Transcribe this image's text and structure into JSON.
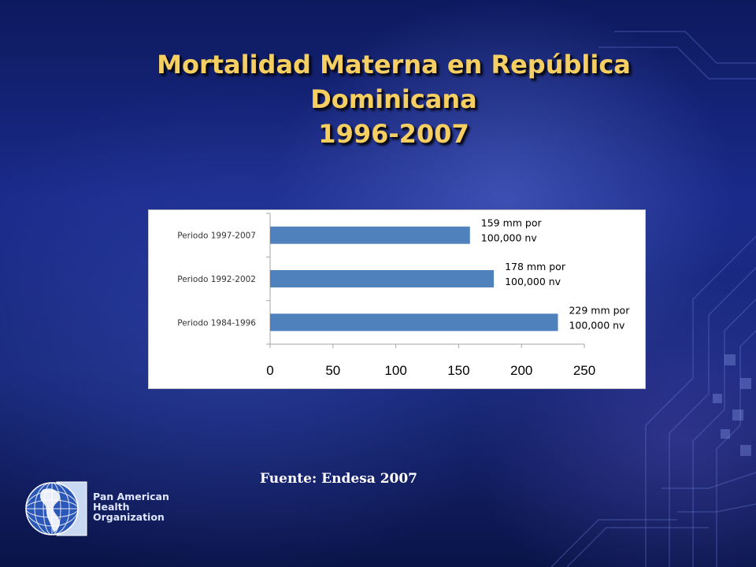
{
  "slide": {
    "title_lines": [
      "Mortalidad Materna en República",
      "Dominicana",
      "1996-2007"
    ],
    "source": "Fuente: Endesa 2007",
    "org_lines": [
      "Pan American",
      "Health",
      "Organization"
    ]
  },
  "colors": {
    "bar": "#4f81bd",
    "title": "#f6cf63"
  },
  "chart_data": {
    "type": "bar",
    "orientation": "horizontal",
    "categories": [
      "Periodo 1997-2007",
      "Periodo 1992-2002",
      "Periodo 1984-1996"
    ],
    "values": [
      159,
      178,
      229
    ],
    "data_labels": [
      [
        "159 mm por",
        "100,000 nv"
      ],
      [
        "178 mm por",
        "100,000 nv"
      ],
      [
        "229 mm por",
        "100,000 nv"
      ]
    ],
    "xlim": [
      0,
      250
    ],
    "xticks": [
      0,
      50,
      100,
      150,
      200,
      250
    ],
    "grid": false,
    "legend": "none"
  }
}
